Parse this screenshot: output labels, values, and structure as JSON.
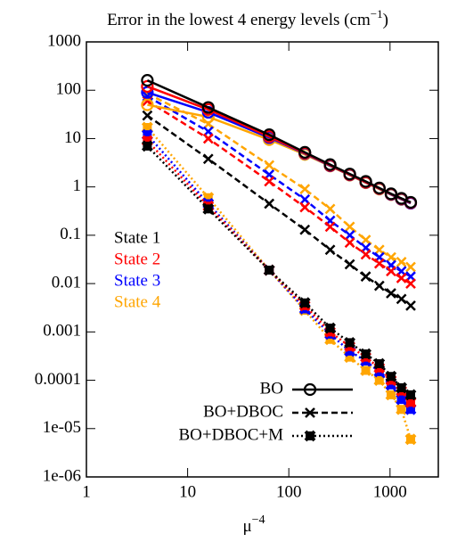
{
  "chart_data": {
    "type": "line",
    "title": [
      "Error in the lowest 4 energy levels (cm",
      "−1",
      ")"
    ],
    "xlabel": [
      "μ",
      "−4"
    ],
    "x": [
      4,
      16,
      64,
      144,
      256,
      400,
      576,
      784,
      1024,
      1296,
      1600
    ],
    "xlim": [
      1,
      3000
    ],
    "ylim": [
      1e-06,
      1000
    ],
    "xlog": true,
    "ylog": true,
    "xticks": [
      1,
      10,
      100,
      1000
    ],
    "yticks": [
      1000,
      100,
      10,
      1,
      0.1,
      0.01,
      0.001,
      0.0001,
      {
        "value": 1e-05,
        "label": "1e-05"
      },
      {
        "value": 1e-06,
        "label": "1e-06"
      }
    ],
    "states": [
      {
        "name": "State 1",
        "color": "#000000"
      },
      {
        "name": "State 2",
        "color": "#ff0000"
      },
      {
        "name": "State 3",
        "color": "#0000ff"
      },
      {
        "name": "State 4",
        "color": "#ffa500"
      }
    ],
    "series": [
      {
        "name": "BO",
        "style": "solid",
        "marker": "circle",
        "values": [
          [
            160,
            44,
            12,
            5.2,
            2.9,
            1.85,
            1.3,
            0.95,
            0.72,
            0.58,
            0.48
          ],
          [
            120,
            40,
            11,
            5,
            2.8,
            1.8,
            1.25,
            0.93,
            0.71,
            0.57,
            0.47
          ],
          [
            90,
            35,
            10.5,
            4.9,
            2.75,
            1.78,
            1.24,
            0.92,
            0.7,
            0.56,
            0.46
          ],
          [
            50,
            28,
            9.5,
            4.7,
            2.7,
            1.75,
            1.22,
            0.9,
            0.69,
            0.55,
            0.46
          ]
        ]
      },
      {
        "name": "BO+DBOC",
        "style": "dashed",
        "marker": "cross",
        "values": [
          [
            30,
            3.8,
            0.45,
            0.13,
            0.05,
            0.025,
            0.014,
            0.009,
            0.0063,
            0.0048,
            0.0035
          ],
          [
            60,
            10,
            1.3,
            0.38,
            0.15,
            0.07,
            0.04,
            0.026,
            0.018,
            0.013,
            0.01
          ],
          [
            75,
            14,
            1.8,
            0.55,
            0.2,
            0.1,
            0.055,
            0.035,
            0.024,
            0.018,
            0.014
          ],
          [
            85,
            20,
            2.8,
            0.9,
            0.35,
            0.15,
            0.08,
            0.05,
            0.035,
            0.028,
            0.022
          ]
        ]
      },
      {
        "name": "BO+DBOC+M",
        "style": "dotted",
        "marker": "star",
        "values": [
          [
            7,
            0.35,
            0.019,
            0.004,
            0.0012,
            0.0006,
            0.00035,
            0.00022,
            0.00012,
            7e-05,
            5e-05
          ],
          [
            9,
            0.4,
            0.019,
            0.0035,
            0.001,
            0.0005,
            0.0003,
            0.00018,
            0.0001,
            6e-05,
            3.5e-05
          ],
          [
            12,
            0.45,
            0.019,
            0.003,
            0.0009,
            0.0004,
            0.00025,
            0.00015,
            8e-05,
            4e-05,
            2.5e-05
          ],
          [
            17,
            0.6,
            0.019,
            0.0028,
            0.0007,
            0.0003,
            0.00016,
            0.0001,
            5e-05,
            2.5e-05,
            6e-06
          ]
        ]
      }
    ]
  }
}
